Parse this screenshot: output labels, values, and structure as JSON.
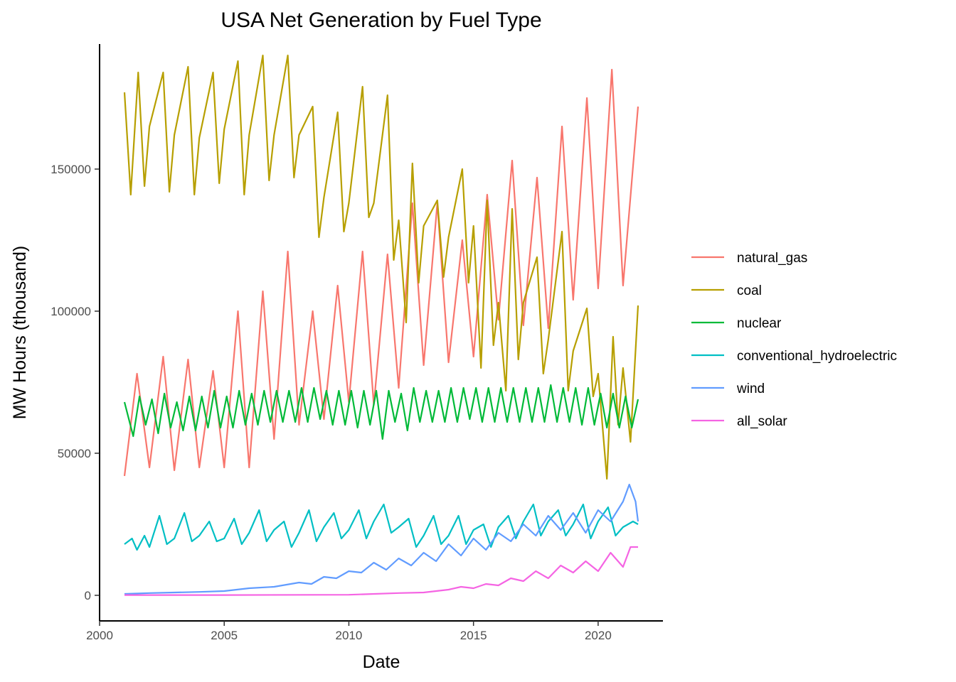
{
  "chart_data": {
    "type": "line",
    "title": "USA Net Generation by Fuel Type",
    "xlabel": "Date",
    "ylabel": "MW Hours (thousand)",
    "xlim": [
      2000.0,
      2022.6
    ],
    "ylim": [
      -9000,
      194000
    ],
    "xticks": [
      2000,
      2005,
      2010,
      2015,
      2020
    ],
    "yticks": [
      0,
      50000,
      100000,
      150000
    ],
    "grid": false,
    "legend_position": "right",
    "series": [
      {
        "name": "natural_gas",
        "color": "#F8766D",
        "x": [
          2001.0,
          2001.5,
          2002.0,
          2002.55,
          2003.0,
          2003.55,
          2004.0,
          2004.55,
          2005.0,
          2005.55,
          2006.0,
          2006.55,
          2007.0,
          2007.55,
          2008.0,
          2008.55,
          2009.0,
          2009.55,
          2010.0,
          2010.55,
          2011.0,
          2011.55,
          2012.0,
          2012.55,
          2013.0,
          2013.55,
          2014.0,
          2014.55,
          2015.0,
          2015.55,
          2016.0,
          2016.55,
          2017.0,
          2017.55,
          2018.0,
          2018.55,
          2019.0,
          2019.55,
          2020.0,
          2020.55,
          2021.0,
          2021.6
        ],
        "y": [
          42000,
          78000,
          45000,
          84000,
          44000,
          83000,
          45000,
          79000,
          45000,
          100000,
          45000,
          107000,
          55000,
          121000,
          60000,
          100000,
          62000,
          109000,
          68000,
          121000,
          67000,
          120000,
          73000,
          138000,
          81000,
          138000,
          82000,
          125000,
          84000,
          141000,
          97000,
          153000,
          95000,
          147000,
          94000,
          165000,
          104000,
          175000,
          108000,
          185000,
          109000,
          172000
        ]
      },
      {
        "name": "coal",
        "color": "#B79F00",
        "x": [
          2001.0,
          2001.25,
          2001.55,
          2001.8,
          2002.0,
          2002.55,
          2002.8,
          2003.0,
          2003.55,
          2003.8,
          2004.0,
          2004.55,
          2004.8,
          2005.0,
          2005.55,
          2005.8,
          2006.0,
          2006.55,
          2006.8,
          2007.0,
          2007.55,
          2007.8,
          2008.0,
          2008.55,
          2008.8,
          2009.0,
          2009.55,
          2009.8,
          2010.0,
          2010.55,
          2010.8,
          2011.0,
          2011.55,
          2011.8,
          2012.0,
          2012.3,
          2012.55,
          2012.8,
          2013.0,
          2013.55,
          2013.8,
          2014.0,
          2014.55,
          2014.8,
          2015.0,
          2015.3,
          2015.55,
          2015.8,
          2016.0,
          2016.3,
          2016.55,
          2016.8,
          2017.0,
          2017.55,
          2017.8,
          2018.0,
          2018.55,
          2018.8,
          2019.0,
          2019.55,
          2019.8,
          2020.0,
          2020.35,
          2020.6,
          2020.8,
          2021.0,
          2021.3,
          2021.6
        ],
        "y": [
          177000,
          141000,
          184000,
          144000,
          165000,
          184000,
          142000,
          162000,
          186000,
          141000,
          161000,
          184000,
          145000,
          164000,
          188000,
          141000,
          162000,
          190000,
          146000,
          162000,
          190000,
          147000,
          162000,
          172000,
          126000,
          140000,
          170000,
          128000,
          138000,
          179000,
          133000,
          138000,
          176000,
          118000,
          132000,
          96000,
          152000,
          110000,
          130000,
          139000,
          112000,
          126000,
          150000,
          110000,
          130000,
          80000,
          139000,
          88000,
          103000,
          72000,
          136000,
          83000,
          103000,
          119000,
          78000,
          90000,
          128000,
          72000,
          86000,
          101000,
          70000,
          78000,
          41000,
          91000,
          60000,
          80000,
          54000,
          102000
        ]
      },
      {
        "name": "nuclear",
        "color": "#00BA38",
        "x": [
          2001.0,
          2001.35,
          2001.6,
          2001.85,
          2002.1,
          2002.35,
          2002.6,
          2002.85,
          2003.1,
          2003.35,
          2003.6,
          2003.85,
          2004.1,
          2004.35,
          2004.6,
          2004.85,
          2005.1,
          2005.35,
          2005.6,
          2005.85,
          2006.1,
          2006.35,
          2006.6,
          2006.85,
          2007.1,
          2007.35,
          2007.6,
          2007.85,
          2008.1,
          2008.35,
          2008.6,
          2008.85,
          2009.1,
          2009.35,
          2009.6,
          2009.85,
          2010.1,
          2010.35,
          2010.6,
          2010.85,
          2011.1,
          2011.35,
          2011.6,
          2011.85,
          2012.1,
          2012.35,
          2012.6,
          2012.85,
          2013.1,
          2013.35,
          2013.6,
          2013.85,
          2014.1,
          2014.35,
          2014.6,
          2014.85,
          2015.1,
          2015.35,
          2015.6,
          2015.85,
          2016.1,
          2016.35,
          2016.6,
          2016.85,
          2017.1,
          2017.35,
          2017.6,
          2017.85,
          2018.1,
          2018.35,
          2018.6,
          2018.85,
          2019.1,
          2019.35,
          2019.6,
          2019.85,
          2020.1,
          2020.35,
          2020.6,
          2020.85,
          2021.1,
          2021.35,
          2021.6
        ],
        "y": [
          68000,
          56000,
          70000,
          60000,
          69000,
          57000,
          71000,
          59000,
          68000,
          58000,
          70000,
          58000,
          70000,
          59000,
          72000,
          59000,
          70000,
          59000,
          72000,
          60000,
          71000,
          60000,
          72000,
          61000,
          72000,
          61000,
          72000,
          61000,
          73000,
          61000,
          73000,
          62000,
          72000,
          60000,
          72000,
          60000,
          72000,
          59000,
          72000,
          60000,
          72000,
          55000,
          72000,
          61000,
          71000,
          58000,
          73000,
          61000,
          72000,
          61000,
          72000,
          61000,
          73000,
          61000,
          73000,
          62000,
          73000,
          61000,
          73000,
          61000,
          73000,
          61000,
          73000,
          61000,
          73000,
          61000,
          73000,
          61000,
          74000,
          61000,
          73000,
          61000,
          73000,
          60000,
          73000,
          60000,
          71000,
          59000,
          71000,
          59000,
          70000,
          59000,
          69000
        ]
      },
      {
        "name": "conventional_hydroelectric",
        "color": "#00BFC4",
        "x": [
          2001.0,
          2001.3,
          2001.5,
          2001.8,
          2002.0,
          2002.4,
          2002.7,
          2003.0,
          2003.4,
          2003.7,
          2004.0,
          2004.4,
          2004.7,
          2005.0,
          2005.4,
          2005.7,
          2006.0,
          2006.4,
          2006.7,
          2007.0,
          2007.4,
          2007.7,
          2008.0,
          2008.4,
          2008.7,
          2009.0,
          2009.4,
          2009.7,
          2010.0,
          2010.4,
          2010.7,
          2011.0,
          2011.4,
          2011.7,
          2012.0,
          2012.4,
          2012.7,
          2013.0,
          2013.4,
          2013.7,
          2014.0,
          2014.4,
          2014.7,
          2015.0,
          2015.4,
          2015.7,
          2016.0,
          2016.4,
          2016.7,
          2017.0,
          2017.4,
          2017.7,
          2018.0,
          2018.4,
          2018.7,
          2019.0,
          2019.4,
          2019.7,
          2020.0,
          2020.4,
          2020.7,
          2021.0,
          2021.4,
          2021.6
        ],
        "y": [
          18000,
          20000,
          16000,
          21000,
          17000,
          28000,
          18000,
          20000,
          29000,
          19000,
          21000,
          26000,
          19000,
          20000,
          27000,
          18000,
          22000,
          30000,
          19000,
          23000,
          26000,
          17000,
          22000,
          30000,
          19000,
          24000,
          29000,
          20000,
          23000,
          30000,
          20000,
          26000,
          32000,
          22000,
          24000,
          27000,
          17000,
          21000,
          28000,
          18000,
          21000,
          28000,
          18000,
          23000,
          25000,
          17000,
          24000,
          28000,
          20000,
          26000,
          32000,
          21000,
          26000,
          30000,
          21000,
          25000,
          32000,
          20000,
          26000,
          31000,
          21000,
          24000,
          26000,
          25000
        ]
      },
      {
        "name": "wind",
        "color": "#619CFF",
        "x": [
          2001.0,
          2002.0,
          2003.0,
          2004.0,
          2005.0,
          2006.0,
          2007.0,
          2008.0,
          2008.5,
          2009.0,
          2009.5,
          2010.0,
          2010.5,
          2011.0,
          2011.5,
          2012.0,
          2012.5,
          2013.0,
          2013.5,
          2014.0,
          2014.5,
          2015.0,
          2015.5,
          2016.0,
          2016.5,
          2017.0,
          2017.5,
          2018.0,
          2018.5,
          2019.0,
          2019.5,
          2020.0,
          2020.5,
          2021.0,
          2021.25,
          2021.5,
          2021.6
        ],
        "y": [
          500,
          800,
          1000,
          1200,
          1500,
          2500,
          3000,
          4500,
          4000,
          6500,
          6000,
          8500,
          8000,
          11500,
          9000,
          13000,
          10500,
          15000,
          12000,
          18000,
          14000,
          20000,
          16000,
          22000,
          19000,
          25000,
          21000,
          28000,
          23000,
          29000,
          22000,
          30000,
          26000,
          33000,
          39000,
          33000,
          26000
        ]
      },
      {
        "name": "all_solar",
        "color": "#F564E3",
        "x": [
          2001.0,
          2005.0,
          2010.0,
          2012.0,
          2013.0,
          2014.0,
          2014.5,
          2015.0,
          2015.5,
          2016.0,
          2016.5,
          2017.0,
          2017.5,
          2018.0,
          2018.5,
          2019.0,
          2019.5,
          2020.0,
          2020.5,
          2021.0,
          2021.3,
          2021.6
        ],
        "y": [
          100,
          100,
          200,
          800,
          1000,
          2000,
          3000,
          2500,
          4000,
          3500,
          6000,
          5000,
          8500,
          6000,
          10500,
          8000,
          12000,
          8500,
          15000,
          10000,
          17000,
          17000
        ]
      }
    ]
  }
}
